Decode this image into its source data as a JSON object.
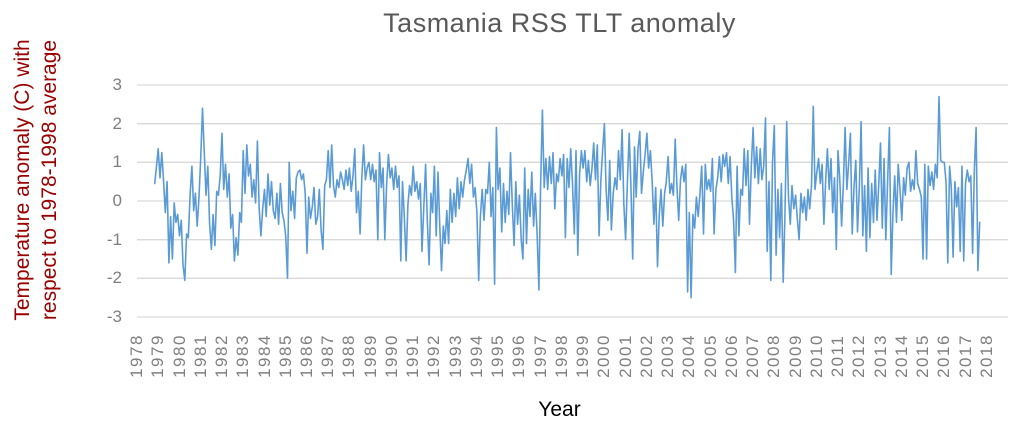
{
  "chart_data": {
    "type": "line",
    "title": "Tasmania RSS TLT anomaly",
    "xlabel": "Year",
    "ylabel": "Temperature anomaly (C) with respect to 1978-1998 average",
    "ylabel_lines": [
      "Temperature anomaly (C) with",
      "respect to 1978-1998 average"
    ],
    "xlim": [
      1978,
      2019
    ],
    "ylim": [
      -3,
      3
    ],
    "yticks": [
      3,
      2,
      1,
      0,
      -1,
      -2,
      -3
    ],
    "xticks": [
      1978,
      1979,
      1980,
      1981,
      1982,
      1983,
      1984,
      1985,
      1986,
      1987,
      1988,
      1989,
      1990,
      1991,
      1992,
      1993,
      1994,
      1995,
      1996,
      1997,
      1998,
      1999,
      2000,
      2001,
      2002,
      2003,
      2004,
      2005,
      2006,
      2007,
      2008,
      2009,
      2010,
      2011,
      2012,
      2013,
      2014,
      2015,
      2016,
      2017,
      2018
    ],
    "grid": true,
    "legend": false,
    "colors": {
      "line": "#5B9BD5",
      "grid": "#D9D9D9",
      "title": "#595959",
      "axis_label": "#990000",
      "tick": "#7F7F7F",
      "xlabel": "#000000"
    },
    "series": [
      {
        "name": "Tasmania RSS TLT anomaly",
        "cadence": "monthly",
        "start_year": 1978,
        "start_month": 11,
        "values": [
          0.45,
          0.9,
          1.35,
          0.6,
          1.25,
          0.5,
          -0.3,
          0.5,
          -1.6,
          -0.4,
          -1.5,
          -0.05,
          -0.55,
          -0.35,
          -0.9,
          -0.5,
          -1.65,
          -2.05,
          -0.85,
          -0.95,
          0.15,
          0.9,
          -0.25,
          0.2,
          -0.65,
          0.1,
          1.1,
          2.4,
          1.25,
          0.15,
          0.9,
          -0.6,
          -1.25,
          -0.35,
          -1.15,
          0.25,
          0.15,
          0.65,
          1.75,
          0.3,
          0.95,
          0.1,
          0.7,
          -0.7,
          -0.35,
          -1.55,
          -0.95,
          -1.4,
          -0.3,
          -0.55,
          1.3,
          0.2,
          1.45,
          0.65,
          0.95,
          0.1,
          0.55,
          -0.05,
          1.55,
          -0.2,
          -0.9,
          -0.2,
          0.3,
          -0.4,
          0.7,
          -0.1,
          0.5,
          -0.25,
          -0.45,
          0.2,
          -0.6,
          0.45,
          -0.3,
          -0.5,
          -0.9,
          -2.0,
          1.0,
          -0.25,
          0.25,
          -0.45,
          0.6,
          0.75,
          0.8,
          0.55,
          0.7,
          0.2,
          -1.35,
          0.1,
          -0.45,
          -0.15,
          0.35,
          -0.6,
          -0.4,
          0.3,
          -0.75,
          -1.25,
          0.4,
          0.55,
          1.3,
          0.35,
          1.45,
          0.4,
          0.1,
          0.55,
          0.35,
          0.75,
          0.55,
          0.3,
          0.8,
          0.4,
          0.85,
          0.25,
          0.65,
          1.35,
          -0.3,
          0.25,
          -0.85,
          0.6,
          1.45,
          0.55,
          0.85,
          1.0,
          0.55,
          0.95,
          0.5,
          0.8,
          -1.0,
          1.25,
          0.35,
          0.85,
          -1.0,
          0.4,
          1.2,
          0.6,
          0.85,
          0.3,
          0.9,
          0.35,
          0.65,
          -1.55,
          0.5,
          -0.4,
          -1.55,
          -0.1,
          0.4,
          0.15,
          0.9,
          0.25,
          0.5,
          0.05,
          0.45,
          -1.3,
          -0.15,
          0.95,
          -0.5,
          -1.65,
          0.2,
          -0.3,
          0.9,
          -0.9,
          0.75,
          -0.6,
          -1.8,
          -0.65,
          -1.1,
          -0.25,
          -1.1,
          0.3,
          -0.55,
          0.2,
          -0.4,
          0.6,
          -0.2,
          0.5,
          0.1,
          0.55,
          0.8,
          1.1,
          0.45,
          0.95,
          0.1,
          0.35,
          -0.3,
          -2.05,
          -0.4,
          0.3,
          -0.5,
          0.3,
          0.2,
          1.0,
          -0.4,
          0.35,
          -2.15,
          1.9,
          0.3,
          0.85,
          -0.8,
          0.45,
          -0.55,
          0.25,
          -0.35,
          1.25,
          -0.1,
          -1.15,
          0.5,
          -0.6,
          0.15,
          -1.0,
          -1.5,
          0.85,
          -1.1,
          0.3,
          -0.4,
          0.75,
          -0.65,
          0.2,
          -0.85,
          -2.3,
          0.4,
          2.35,
          0.35,
          1.1,
          0.3,
          1.15,
          0.45,
          1.25,
          -0.2,
          0.7,
          0.5,
          1.1,
          0.65,
          1.2,
          -0.95,
          1.1,
          0.35,
          1.35,
          0.45,
          -0.85,
          1.3,
          -1.4,
          0.7,
          1.3,
          0.85,
          1.3,
          0.5,
          1.05,
          0.4,
          0.85,
          1.5,
          0.55,
          1.45,
          -0.9,
          0.5,
          1.3,
          2.0,
          0.3,
          -0.5,
          1.05,
          -0.75,
          0.2,
          0.6,
          0.3,
          1.3,
          0.55,
          1.85,
          -0.05,
          -1.0,
          0.5,
          1.75,
          0.4,
          -1.5,
          1.4,
          0.1,
          1.35,
          1.8,
          0.2,
          0.75,
          1.2,
          1.75,
          0.85,
          1.3,
          0.5,
          -0.6,
          0.35,
          -1.7,
          -0.4,
          0.3,
          -0.65,
          0.2,
          0.5,
          1.15,
          0.2,
          0.45,
          0.15,
          1.6,
          0.4,
          -0.5,
          0.55,
          0.9,
          0.5,
          0.95,
          -2.35,
          -0.3,
          -2.5,
          -0.35,
          -0.7,
          0.1,
          -0.4,
          0.2,
          0.9,
          -0.85,
          0.95,
          0.3,
          0.55,
          0.25,
          1.1,
          -0.85,
          0.3,
          0.6,
          1.15,
          0.5,
          1.2,
          0.9,
          1.25,
          0.45,
          1.15,
          0.1,
          -0.5,
          -1.85,
          0.9,
          -0.9,
          0.3,
          0.15,
          1.35,
          0.4,
          1.3,
          -0.6,
          0.9,
          1.9,
          0.6,
          1.4,
          0.45,
          1.35,
          0.55,
          0.9,
          2.15,
          -1.3,
          0.5,
          -2.05,
          1.0,
          1.95,
          -1.4,
          0.3,
          -0.95,
          0.45,
          -2.1,
          -0.4,
          2.05,
          0.1,
          -0.6,
          0.4,
          -0.2,
          0.15,
          -0.45,
          -1.0,
          0.2,
          -0.3,
          0.1,
          -0.5,
          0.3,
          -0.2,
          0.4,
          2.45,
          0.3,
          0.75,
          1.1,
          0.45,
          0.95,
          -0.6,
          0.55,
          1.35,
          0.3,
          1.1,
          -0.3,
          0.6,
          -1.25,
          1.3,
          0.55,
          -0.65,
          0.45,
          1.9,
          0.3,
          1.0,
          1.75,
          -0.85,
          0.35,
          1.05,
          -0.8,
          0.3,
          2.05,
          -0.9,
          0.4,
          -1.3,
          0.85,
          -0.95,
          0.45,
          -0.55,
          0.8,
          -0.5,
          0.45,
          1.5,
          -0.7,
          1.1,
          -1.0,
          0.5,
          1.9,
          -1.9,
          -0.35,
          0.65,
          -0.55,
          0.95,
          0.3,
          -0.5,
          0.6,
          0.15,
          0.85,
          1.0,
          0.25,
          0.55,
          0.3,
          1.3,
          0.45,
          0.3,
          0.1,
          -1.5,
          0.95,
          -1.5,
          0.9,
          0.4,
          0.75,
          0.3,
          0.95,
          0.6,
          2.7,
          1.05,
          1.0,
          1.0,
          0.5,
          -1.6,
          0.9,
          0.35,
          -1.45,
          0.5,
          -0.15,
          0.35,
          -1.3,
          0.9,
          -1.55,
          0.45,
          0.8,
          0.5,
          0.65,
          -1.35,
          0.85,
          1.9,
          -1.8,
          -0.55
        ]
      }
    ]
  }
}
